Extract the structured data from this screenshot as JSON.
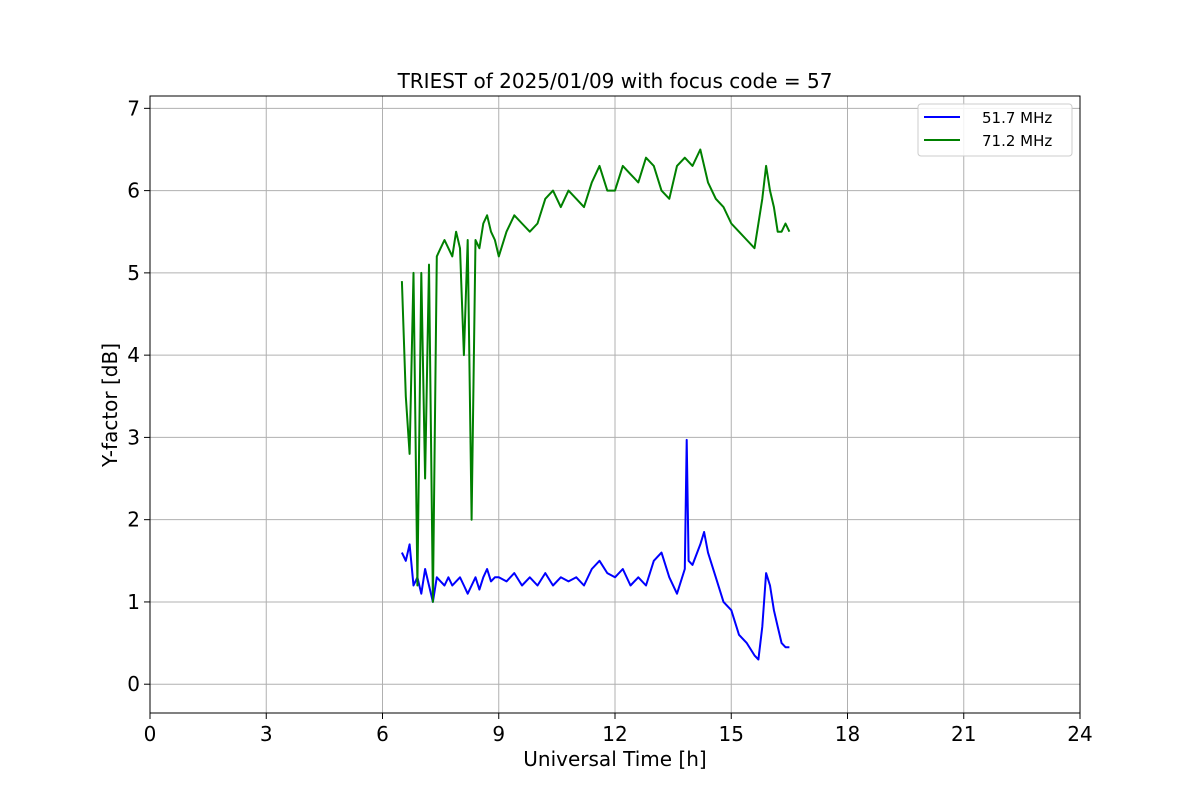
{
  "chart_data": {
    "type": "line",
    "title": "TRIEST of 2025/01/09 with focus code = 57",
    "xlabel": "Universal Time [h]",
    "ylabel": "Y-factor [dB]",
    "xlim": [
      0,
      24
    ],
    "ylim": [
      -0.35,
      7.15
    ],
    "xticks": [
      0,
      3,
      6,
      9,
      12,
      15,
      18,
      21,
      24
    ],
    "yticks": [
      0,
      1,
      2,
      3,
      4,
      5,
      6,
      7
    ],
    "grid": true,
    "legend_position": "top-right",
    "series": [
      {
        "name": "51.7 MHz",
        "color": "#0000ff",
        "x": [
          6.5,
          6.6,
          6.7,
          6.8,
          6.9,
          7.0,
          7.1,
          7.2,
          7.3,
          7.4,
          7.5,
          7.6,
          7.7,
          7.8,
          7.9,
          8.0,
          8.1,
          8.2,
          8.3,
          8.4,
          8.5,
          8.6,
          8.7,
          8.8,
          8.9,
          9.0,
          9.2,
          9.4,
          9.6,
          9.8,
          10.0,
          10.2,
          10.4,
          10.6,
          10.8,
          11.0,
          11.2,
          11.4,
          11.6,
          11.8,
          12.0,
          12.2,
          12.4,
          12.6,
          12.8,
          13.0,
          13.2,
          13.4,
          13.6,
          13.8,
          13.85,
          13.9,
          14.0,
          14.2,
          14.3,
          14.4,
          14.6,
          14.8,
          15.0,
          15.2,
          15.4,
          15.6,
          15.7,
          15.8,
          15.9,
          16.0,
          16.1,
          16.2,
          16.3,
          16.4,
          16.5
        ],
        "y": [
          1.6,
          1.5,
          1.7,
          1.2,
          1.3,
          1.1,
          1.4,
          1.2,
          1.0,
          1.3,
          1.25,
          1.2,
          1.3,
          1.2,
          1.25,
          1.3,
          1.2,
          1.1,
          1.2,
          1.3,
          1.15,
          1.3,
          1.4,
          1.25,
          1.3,
          1.3,
          1.25,
          1.35,
          1.2,
          1.3,
          1.2,
          1.35,
          1.2,
          1.3,
          1.25,
          1.3,
          1.2,
          1.4,
          1.5,
          1.35,
          1.3,
          1.4,
          1.2,
          1.3,
          1.2,
          1.5,
          1.6,
          1.3,
          1.1,
          1.4,
          2.97,
          1.5,
          1.45,
          1.7,
          1.85,
          1.6,
          1.3,
          1.0,
          0.9,
          0.6,
          0.5,
          0.35,
          0.3,
          0.7,
          1.35,
          1.2,
          0.9,
          0.7,
          0.5,
          0.45,
          0.45
        ]
      },
      {
        "name": "71.2 MHz",
        "color": "#008000",
        "x": [
          6.5,
          6.6,
          6.7,
          6.8,
          6.9,
          7.0,
          7.1,
          7.2,
          7.3,
          7.4,
          7.5,
          7.6,
          7.7,
          7.8,
          7.9,
          8.0,
          8.1,
          8.2,
          8.3,
          8.4,
          8.5,
          8.6,
          8.7,
          8.8,
          8.9,
          9.0,
          9.2,
          9.4,
          9.6,
          9.8,
          10.0,
          10.2,
          10.4,
          10.6,
          10.8,
          11.0,
          11.2,
          11.4,
          11.6,
          11.8,
          12.0,
          12.2,
          12.4,
          12.6,
          12.8,
          13.0,
          13.2,
          13.4,
          13.6,
          13.8,
          14.0,
          14.2,
          14.4,
          14.6,
          14.8,
          15.0,
          15.2,
          15.4,
          15.6,
          15.7,
          15.8,
          15.9,
          16.0,
          16.1,
          16.2,
          16.3,
          16.4,
          16.5
        ],
        "y": [
          4.9,
          3.5,
          2.8,
          5.0,
          1.2,
          5.0,
          2.5,
          5.1,
          1.0,
          5.2,
          5.3,
          5.4,
          5.3,
          5.2,
          5.5,
          5.3,
          4.0,
          5.4,
          2.0,
          5.4,
          5.3,
          5.6,
          5.7,
          5.5,
          5.4,
          5.2,
          5.5,
          5.7,
          5.6,
          5.5,
          5.6,
          5.9,
          6.0,
          5.8,
          6.0,
          5.9,
          5.8,
          6.1,
          6.3,
          6.0,
          6.0,
          6.3,
          6.2,
          6.1,
          6.4,
          6.3,
          6.0,
          5.9,
          6.3,
          6.4,
          6.3,
          6.5,
          6.1,
          5.9,
          5.8,
          5.6,
          5.5,
          5.4,
          5.3,
          5.6,
          5.9,
          6.3,
          6.0,
          5.8,
          5.5,
          5.5,
          5.6,
          5.5
        ]
      }
    ]
  }
}
